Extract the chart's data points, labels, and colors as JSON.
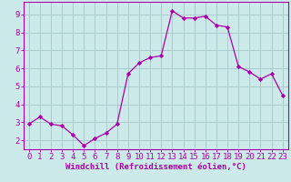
{
  "x": [
    0,
    1,
    2,
    3,
    4,
    5,
    6,
    7,
    8,
    9,
    10,
    11,
    12,
    13,
    14,
    15,
    16,
    17,
    18,
    19,
    20,
    21,
    22,
    23
  ],
  "y": [
    2.9,
    3.3,
    2.9,
    2.8,
    2.3,
    1.7,
    2.1,
    2.4,
    2.9,
    5.7,
    6.3,
    6.6,
    6.7,
    9.2,
    8.8,
    8.8,
    8.9,
    8.4,
    8.3,
    6.1,
    5.8,
    5.4,
    5.7,
    4.5
  ],
  "line_color": "#aa00aa",
  "marker": "D",
  "marker_size": 2.2,
  "bg_color": "#cceaea",
  "grid_color": "#aacccc",
  "xlabel": "Windchill (Refroidissement éolien,°C)",
  "xlim": [
    -0.5,
    23.5
  ],
  "ylim": [
    1.5,
    9.7
  ],
  "yticks": [
    2,
    3,
    4,
    5,
    6,
    7,
    8,
    9
  ],
  "xticks": [
    0,
    1,
    2,
    3,
    4,
    5,
    6,
    7,
    8,
    9,
    10,
    11,
    12,
    13,
    14,
    15,
    16,
    17,
    18,
    19,
    20,
    21,
    22,
    23
  ],
  "tick_label_color": "#aa00aa",
  "axis_color": "#aa00aa",
  "xlabel_color": "#aa00aa",
  "xlabel_fontsize": 6.5,
  "tick_fontsize": 6.5,
  "linewidth": 0.9
}
